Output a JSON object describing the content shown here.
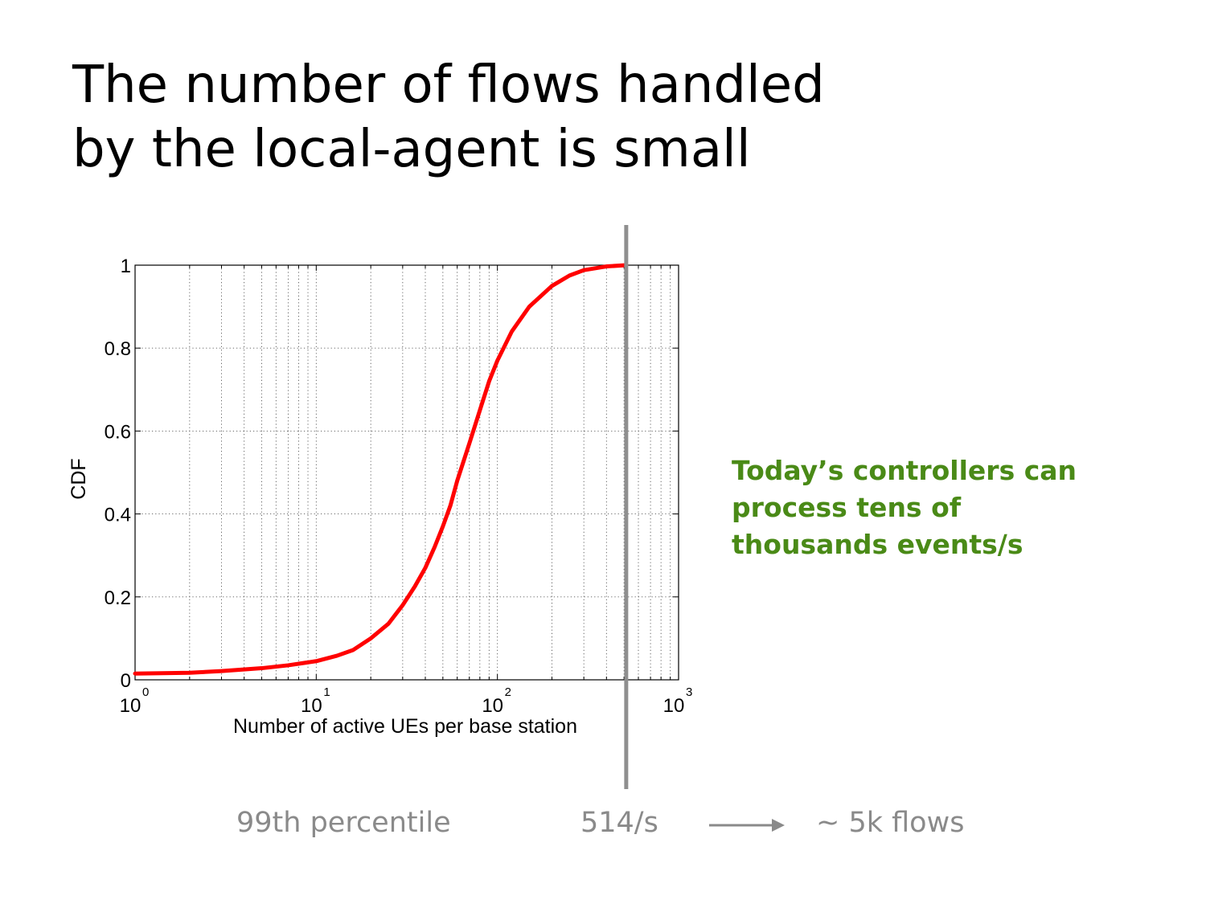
{
  "slide": {
    "title_lines": [
      "The number of flows handled",
      "by the local-agent is small"
    ],
    "callout_lines": [
      "Today’s controllers can",
      "process tens of",
      "thousands events/s"
    ],
    "callout_color": "#4a8a17",
    "bottom": {
      "percentile_label": "99th percentile",
      "rate": "514/s",
      "result": "~ 5k flows",
      "arrow_icon": "right-arrow-icon",
      "text_color": "#8a8a8a"
    }
  },
  "chart_data": {
    "type": "line",
    "xlabel": "Number of active UEs per base station",
    "ylabel": "CDF",
    "x_scale": "log",
    "xlim": [
      1,
      1000
    ],
    "ylim": [
      0,
      1
    ],
    "x_tick_exponents": [
      "0",
      "1",
      "2",
      "3"
    ],
    "x_tick_base": "10",
    "y_tick_labels": [
      "0",
      "0.2",
      "0.4",
      "0.6",
      "0.8",
      "1"
    ],
    "grid": true,
    "series": [
      {
        "color": "#ff0000",
        "x": [
          1,
          2,
          3,
          5,
          7,
          10,
          13,
          16,
          20,
          25,
          30,
          35,
          40,
          45,
          50,
          55,
          60,
          70,
          80,
          90,
          100,
          120,
          150,
          200,
          250,
          300,
          400,
          514
        ],
        "y": [
          0.015,
          0.017,
          0.021,
          0.028,
          0.035,
          0.045,
          0.058,
          0.072,
          0.1,
          0.135,
          0.18,
          0.225,
          0.27,
          0.32,
          0.37,
          0.42,
          0.48,
          0.57,
          0.65,
          0.72,
          0.77,
          0.84,
          0.9,
          0.95,
          0.975,
          0.988,
          0.997,
          1.0
        ]
      }
    ],
    "annotations": [
      {
        "type": "vertical-line",
        "x": 514,
        "color": "#8f8f8f",
        "label": "514/s"
      }
    ]
  }
}
